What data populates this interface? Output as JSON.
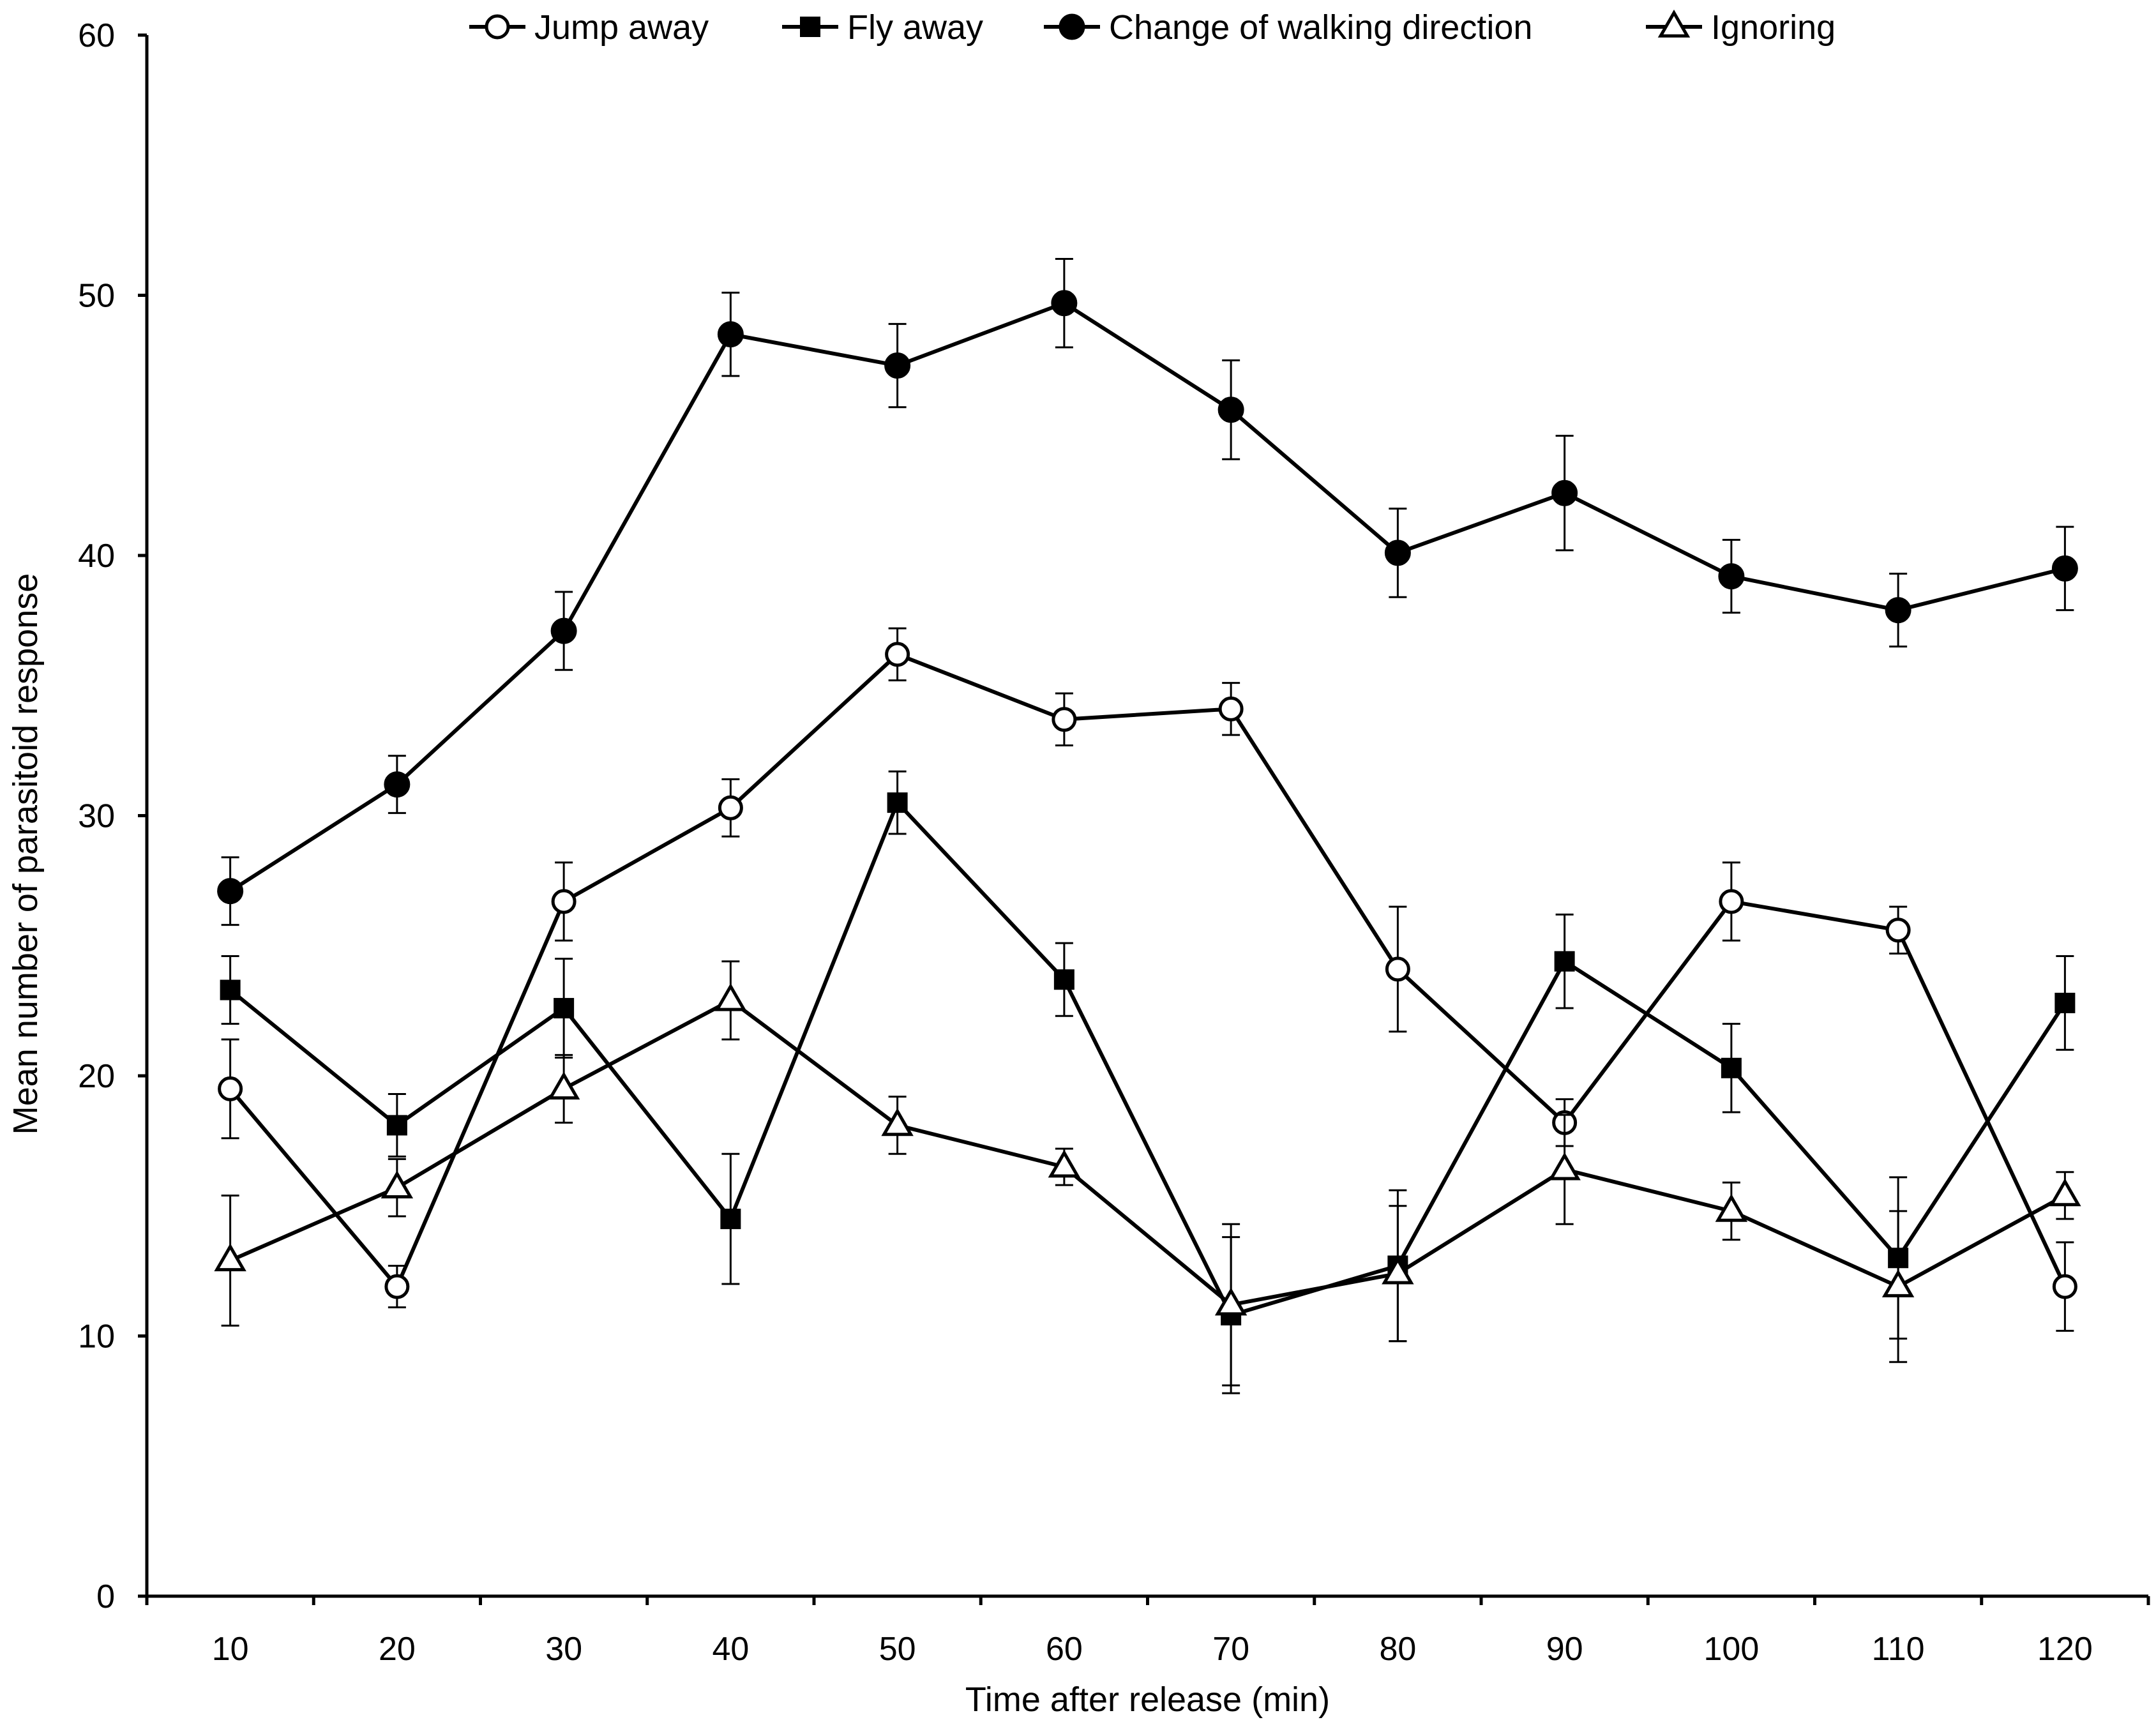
{
  "chart_data": {
    "type": "line",
    "title": "",
    "xlabel": "Time after release (min)",
    "ylabel": "Mean number of parasitoid response",
    "categories": [
      "10",
      "20",
      "30",
      "40",
      "50",
      "60",
      "70",
      "80",
      "90",
      "100",
      "110",
      "120"
    ],
    "ylim": [
      0,
      60
    ],
    "yticks": [
      0,
      10,
      20,
      30,
      40,
      50,
      60
    ],
    "grid": false,
    "legend_position": "top",
    "series": [
      {
        "name": "Jump away",
        "marker": "open-circle",
        "values": [
          19.5,
          11.9,
          26.7,
          30.3,
          36.2,
          33.7,
          34.1,
          24.1,
          18.2,
          26.7,
          25.6,
          11.9
        ],
        "errors": [
          1.9,
          0.8,
          1.5,
          1.1,
          1.0,
          1.0,
          1.0,
          2.4,
          0.9,
          1.5,
          0.9,
          1.7
        ]
      },
      {
        "name": "Fly away",
        "marker": "filled-square",
        "values": [
          23.3,
          18.1,
          22.6,
          14.5,
          30.5,
          23.7,
          10.8,
          12.7,
          24.4,
          20.3,
          13.0,
          22.8
        ],
        "errors": [
          1.3,
          1.2,
          1.9,
          2.5,
          1.2,
          1.4,
          3.0,
          2.9,
          1.8,
          1.7,
          3.1,
          1.8
        ]
      },
      {
        "name": "Change of walking direction",
        "marker": "filled-circle",
        "values": [
          27.1,
          31.2,
          37.1,
          48.5,
          47.3,
          49.7,
          45.6,
          40.1,
          42.4,
          39.2,
          37.9,
          39.5
        ],
        "errors": [
          1.3,
          1.1,
          1.5,
          1.6,
          1.6,
          1.7,
          1.9,
          1.7,
          2.2,
          1.4,
          1.4,
          1.6
        ]
      },
      {
        "name": "Ignoring",
        "marker": "open-triangle",
        "values": [
          12.9,
          15.7,
          19.5,
          22.9,
          18.1,
          16.5,
          11.2,
          12.4,
          16.4,
          14.8,
          11.9,
          15.4
        ],
        "errors": [
          2.5,
          1.1,
          1.3,
          1.5,
          1.1,
          0.7,
          3.1,
          2.6,
          2.1,
          1.1,
          2.9,
          0.9
        ]
      }
    ]
  }
}
